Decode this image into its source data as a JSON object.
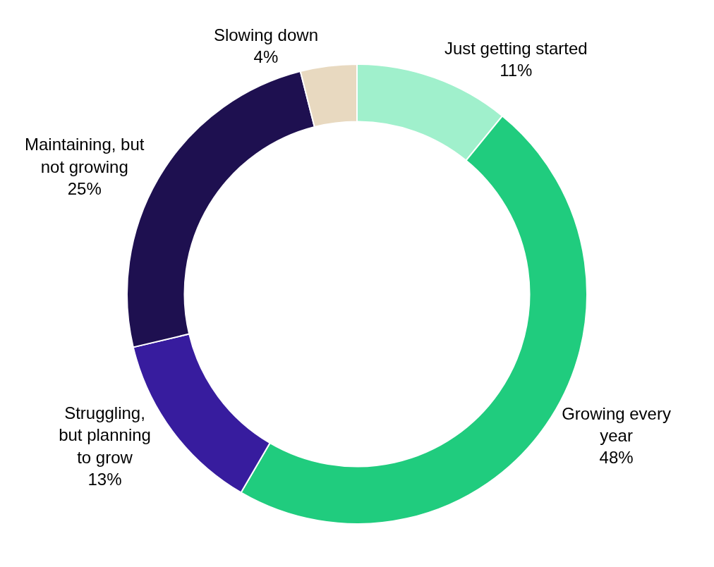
{
  "chart_data": {
    "type": "donut",
    "categories": [
      "Just getting started",
      "Growing every\nyear",
      "Struggling,\nbut planning\nto grow",
      "Maintaining, but\nnot growing",
      "Slowing down"
    ],
    "values": [
      11,
      48,
      13,
      25,
      4
    ],
    "value_labels": [
      "11%",
      "48%",
      "13%",
      "25%",
      "4%"
    ],
    "colors": [
      "#a0f0cc",
      "#20cc7e",
      "#371c9e",
      "#1e1050",
      "#e8d9c0"
    ],
    "legend": false
  }
}
